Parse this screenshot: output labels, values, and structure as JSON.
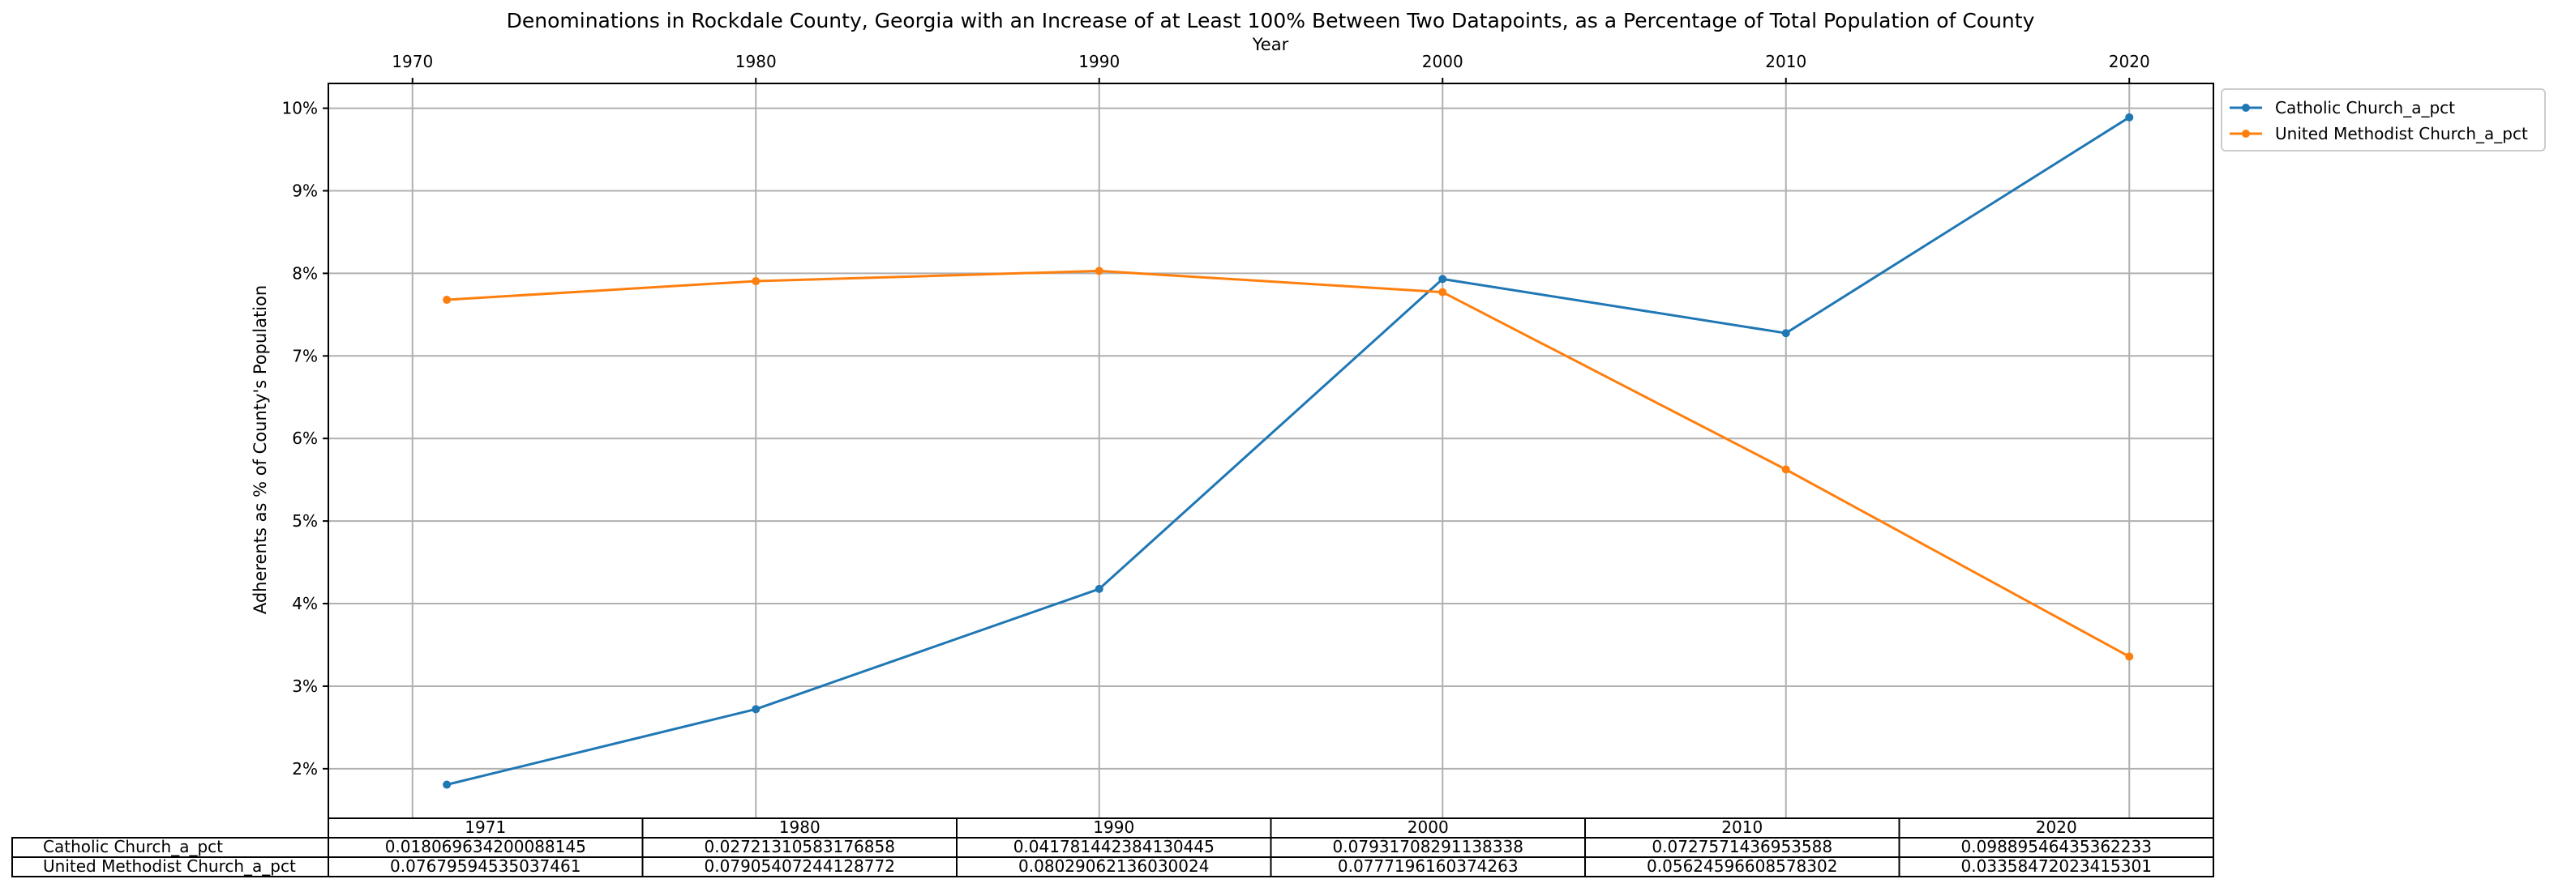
{
  "chart_data": {
    "type": "line",
    "title": "Denominations in Rockdale County, Georgia with an Increase of at Least 100% Between Two Datapoints, as a Percentage of Total Population of County",
    "xlabel": "Year",
    "ylabel": "Adherents as % of County's Population",
    "x": [
      1971,
      1980,
      1990,
      2000,
      2010,
      2020
    ],
    "x_ticks": [
      "1970",
      "1980",
      "1990",
      "2000",
      "2010",
      "2020"
    ],
    "x_tick_values": [
      1970,
      1980,
      1990,
      2000,
      2010,
      2020
    ],
    "y_ticks": [
      "2%",
      "3%",
      "4%",
      "5%",
      "6%",
      "7%",
      "8%",
      "9%",
      "10%"
    ],
    "y_tick_values": [
      0.02,
      0.03,
      0.04,
      0.05,
      0.06,
      0.07,
      0.08,
      0.09,
      0.1
    ],
    "xlim": [
      1967.55,
      2022.45
    ],
    "ylim": [
      0.014,
      0.103
    ],
    "x_axis_position": "top",
    "grid": true,
    "legend_position": "outside-top-right",
    "series": [
      {
        "name": "Catholic Church_a_pct",
        "color": "#1f77b4",
        "values": [
          0.018069634200088145,
          0.02721310583176858,
          0.041781442384130445,
          0.07931708291138338,
          0.0727571436953588,
          0.09889546435362233
        ]
      },
      {
        "name": "United Methodist Church_a_pct",
        "color": "#ff7f0e",
        "values": [
          0.07679594535037461,
          0.07905407244128772,
          0.08029062136030024,
          0.0777196160374263,
          0.05624596608578302,
          0.03358472023415301
        ]
      }
    ],
    "table": {
      "columns": [
        "1971",
        "1980",
        "1990",
        "2000",
        "2010",
        "2020"
      ],
      "rows": [
        {
          "label": "Catholic Church_a_pct",
          "cells": [
            "0.018069634200088145",
            "0.02721310583176858",
            "0.041781442384130445",
            "0.07931708291138338",
            "0.0727571436953588",
            "0.09889546435362233"
          ]
        },
        {
          "label": "United Methodist Church_a_pct",
          "cells": [
            "0.07679594535037461",
            "0.07905407244128772",
            "0.08029062136030024",
            "0.0777196160374263",
            "0.05624596608578302",
            "0.03358472023415301"
          ]
        }
      ]
    }
  }
}
